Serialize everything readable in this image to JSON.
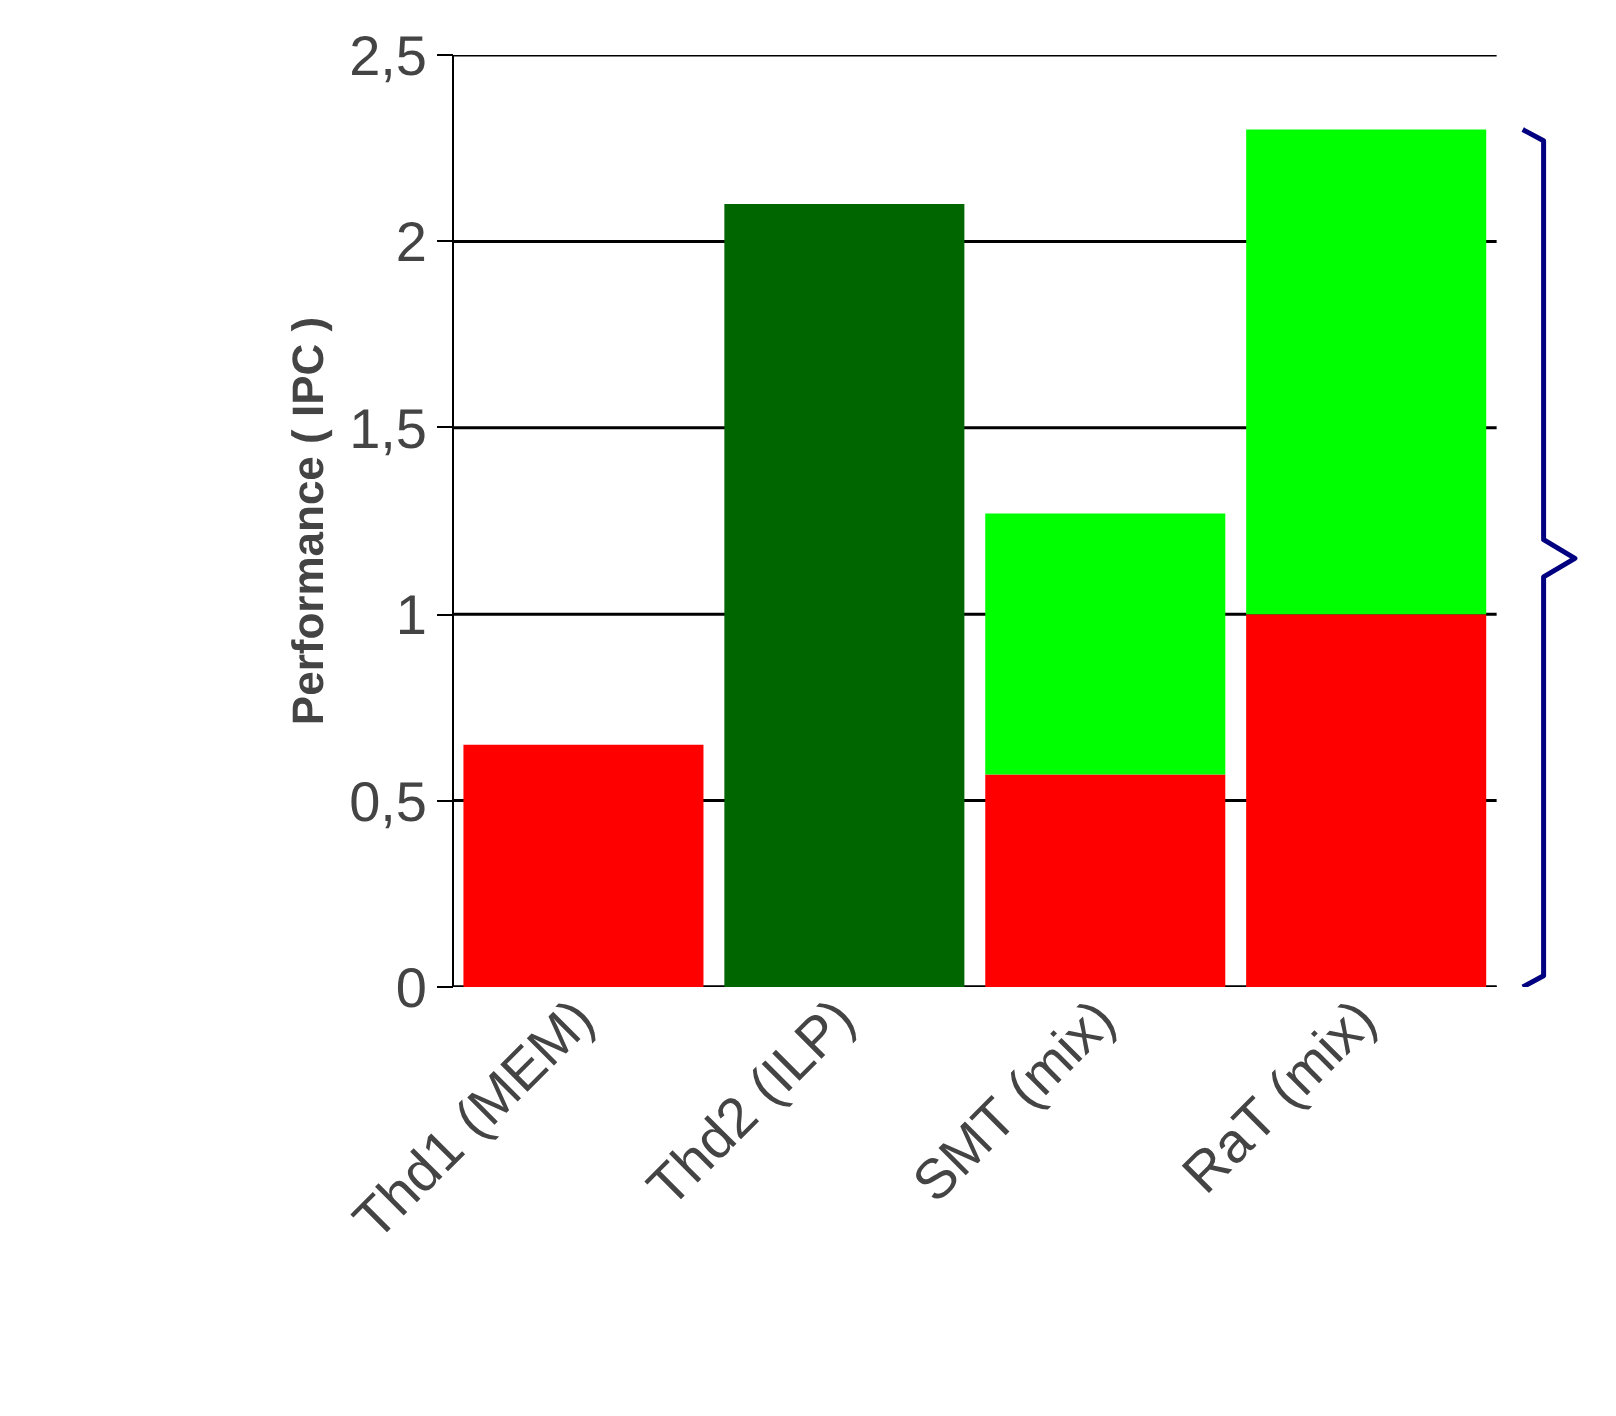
{
  "chart_data": {
    "type": "bar",
    "stacked": true,
    "ylabel": "Performance ( IPC )",
    "categories": [
      "Thd1 (MEM)",
      "Thd2 (ILP)",
      "SMT (mix)",
      "RaT (mix)"
    ],
    "series": [
      {
        "color": "#ff0000",
        "values": [
          0.65,
          null,
          0.57,
          1.0
        ]
      },
      {
        "color": "#006600",
        "values": [
          null,
          2.1,
          null,
          null
        ]
      },
      {
        "color": "#00ff00",
        "values": [
          null,
          null,
          0.7,
          1.3
        ]
      }
    ],
    "ylim": [
      0,
      2.5
    ],
    "yticks": [
      0,
      {
        "value": 0.5,
        "label": "0,5"
      },
      1,
      {
        "value": 1.5,
        "label": "1,5"
      },
      2,
      {
        "value": 2.5,
        "label": "2,5"
      }
    ],
    "grid": "y"
  }
}
